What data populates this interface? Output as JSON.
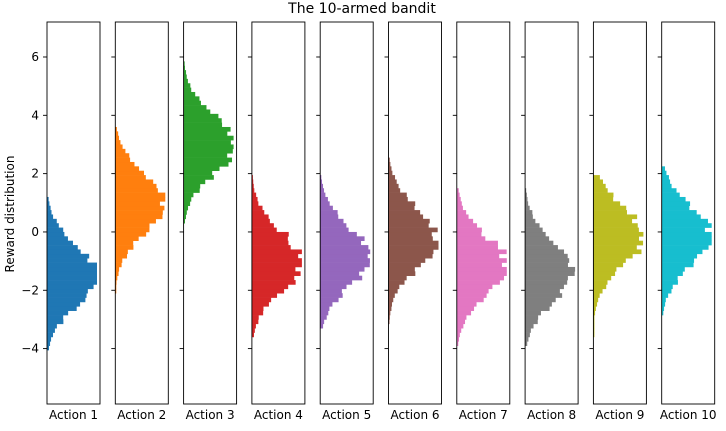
{
  "chart_data": {
    "type": "bar",
    "orientation": "horizontal-histogram",
    "title": "The 10-armed bandit",
    "ylabel": "Reward distribution",
    "ylim": [
      -5.9,
      7.2
    ],
    "yticks": [
      -4,
      -2,
      0,
      2,
      4,
      6
    ],
    "ytick_labels": [
      "−4",
      "−2",
      "0",
      "2",
      "4",
      "6"
    ],
    "categories": [
      "Action 1",
      "Action 2",
      "Action 3",
      "Action 4",
      "Action 5",
      "Action 6",
      "Action 7",
      "Action 8",
      "Action 9",
      "Action 10"
    ],
    "colors": [
      "#1f77b4",
      "#ff7f0e",
      "#2ca02c",
      "#d62728",
      "#9467bd",
      "#8c564b",
      "#e377c2",
      "#7f7f7f",
      "#bcbd22",
      "#17becf"
    ],
    "series": [
      {
        "mean": -1.5,
        "std": 1.0,
        "min": -3.95,
        "max": 1.05
      },
      {
        "mean": 0.95,
        "std": 1.0,
        "min": -2.0,
        "max": 3.45
      },
      {
        "mean": 3.0,
        "std": 1.0,
        "min": 0.35,
        "max": 5.75
      },
      {
        "mean": -1.0,
        "std": 1.0,
        "min": -3.45,
        "max": 1.85
      },
      {
        "mean": -0.85,
        "std": 1.0,
        "min": -3.2,
        "max": 1.85
      },
      {
        "mean": -0.2,
        "std": 1.0,
        "min": -3.15,
        "max": 2.5
      },
      {
        "mean": -1.15,
        "std": 1.0,
        "min": -3.8,
        "max": 1.45
      },
      {
        "mean": -1.35,
        "std": 1.0,
        "min": -3.9,
        "max": 1.45
      },
      {
        "mean": -0.15,
        "std": 1.0,
        "min": -3.6,
        "max": 1.8
      },
      {
        "mean": -0.15,
        "std": 1.0,
        "min": -2.7,
        "max": 2.2
      }
    ]
  }
}
